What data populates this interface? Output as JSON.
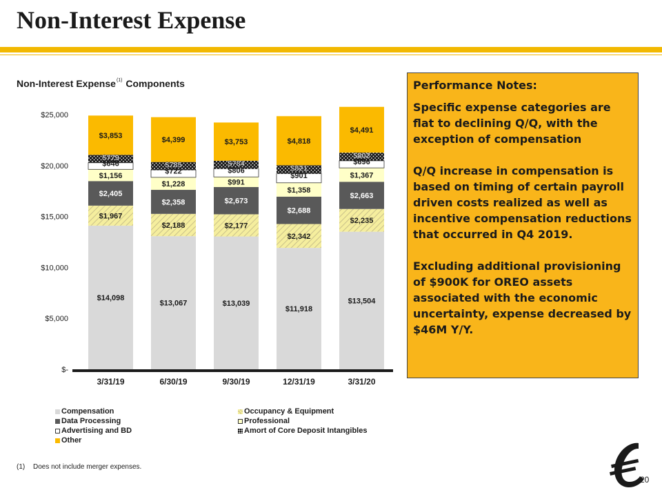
{
  "page": {
    "title": "Non-Interest Expense",
    "page_number": "20",
    "footnote_number": "(1)",
    "footnote_text": "Does not include merger expenses."
  },
  "chart_heading": {
    "text_before": "Non-Interest Expense",
    "superscript": "(1)",
    "text_after": "Components"
  },
  "notes": {
    "heading": "Performance Notes:",
    "paragraphs": [
      "Specific expense categories are flat to declining Q/Q, with the exception of compensation",
      "Q/Q increase in compensation is based on timing of certain payroll driven costs realized as well as incentive compensation reductions that occurred in Q4 2019.",
      "Excluding additional provisioning of $900K for OREO assets associated with the economic uncertainty, expense decreased by $46M Y/Y."
    ]
  },
  "chart_data": {
    "type": "bar",
    "stacked": true,
    "categories": [
      "3/31/19",
      "6/30/19",
      "9/30/19",
      "12/31/19",
      "3/31/20"
    ],
    "ylim": [
      0,
      25000
    ],
    "yticks": [
      0,
      5000,
      10000,
      15000,
      20000,
      25000
    ],
    "ytick_labels": [
      "$-",
      "$5,000",
      "$10,000",
      "$15,000",
      "$20,000",
      "$25,000"
    ],
    "grid": false,
    "legend_position": "bottom",
    "series": [
      {
        "name": "Compensation",
        "values": [
          14098,
          13067,
          13039,
          11918,
          13504
        ],
        "labels": [
          "$14,098",
          "$13,067",
          "$13,039",
          "$11,918",
          "$13,504"
        ],
        "color": "#D9D9D9",
        "pattern": "solid"
      },
      {
        "name": "Occupancy & Equipment",
        "values": [
          1967,
          2188,
          2177,
          2342,
          2235
        ],
        "labels": [
          "$1,967",
          "$2,188",
          "$2,177",
          "$2,342",
          "$2,235"
        ],
        "color": "#F5EE9E",
        "pattern": "diagonal"
      },
      {
        "name": "Data Processing",
        "values": [
          2405,
          2358,
          2673,
          2688,
          2663
        ],
        "labels": [
          "$2,405",
          "$2,358",
          "$2,673",
          "$2,688",
          "$2,663"
        ],
        "color": "#595959",
        "pattern": "solid"
      },
      {
        "name": "Professional",
        "values": [
          1156,
          1228,
          991,
          1358,
          1367
        ],
        "labels": [
          "$1,156",
          "$1,228",
          "$991",
          "$1,358",
          "$1,367"
        ],
        "color": "#FFFFC8",
        "pattern": "solid"
      },
      {
        "name": "Advertising and BD",
        "values": [
          646,
          722,
          806,
          901,
          696
        ],
        "labels": [
          "$646",
          "$722",
          "$806",
          "$901",
          "$696"
        ],
        "color": "#FFFFFF",
        "pattern": "solid"
      },
      {
        "name": "Amort of Core Deposit Intangibles",
        "values": [
          779,
          785,
          784,
          821,
          802
        ],
        "labels": [
          "$779",
          "$785",
          "$784",
          "$821",
          "$802"
        ],
        "color": "#1a1a1a",
        "pattern": "dots"
      },
      {
        "name": "Other",
        "values": [
          3853,
          4399,
          3753,
          4818,
          4491
        ],
        "labels": [
          "$3,853",
          "$4,399",
          "$3,753",
          "$4,818",
          "$4,491"
        ],
        "color": "#FBBA00",
        "pattern": "solid"
      }
    ]
  }
}
